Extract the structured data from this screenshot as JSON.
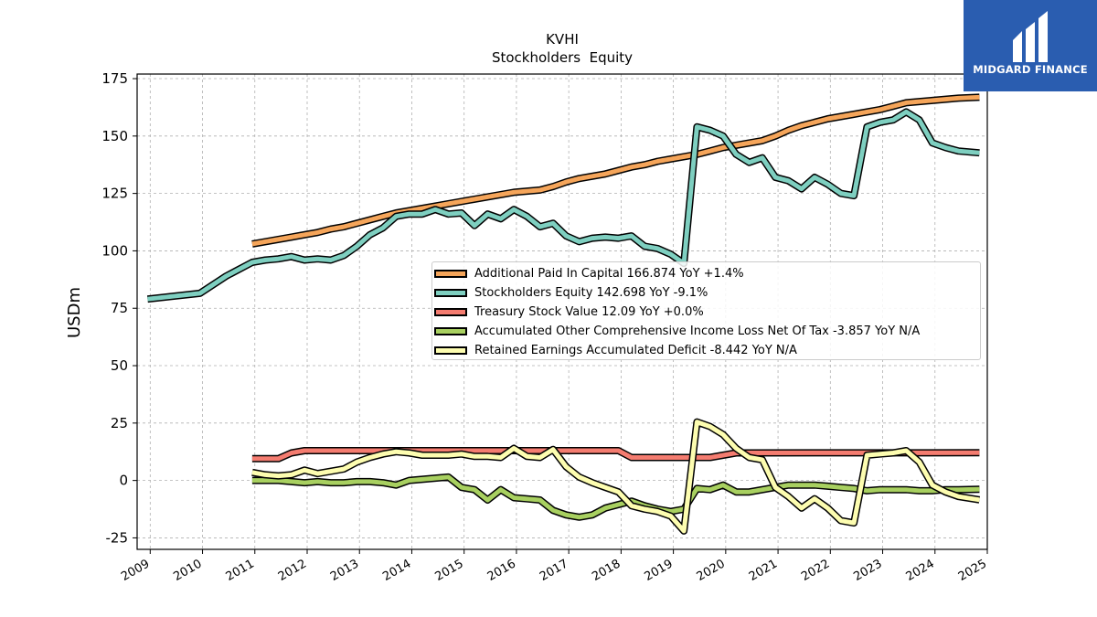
{
  "brand": {
    "name": "MIDGARD FINANCE",
    "color": "#2a5db0"
  },
  "chart_data": {
    "type": "line",
    "title": "KVHI",
    "subtitle": "Stockholders  Equity",
    "ylabel": "USDm",
    "xlabel": "",
    "ylim": [
      -30,
      177
    ],
    "xlim": [
      2008.75,
      2025.0
    ],
    "yticks": [
      -25,
      0,
      25,
      50,
      75,
      100,
      125,
      150,
      175
    ],
    "xticks": [
      "2009",
      "2010",
      "2011",
      "2012",
      "2013",
      "2014",
      "2015",
      "2016",
      "2017",
      "2018",
      "2019",
      "2020",
      "2021",
      "2022",
      "2023",
      "2024",
      "2025"
    ],
    "grid": true,
    "legend_position": "center-right",
    "series": [
      {
        "name": "Additional Paid In Capital",
        "legend_label": "Additional Paid In Capital  166.874 YoY +1.4%",
        "color": "#f5a55a",
        "points": [
          [
            2010.95,
            103
          ],
          [
            2011.2,
            104
          ],
          [
            2011.45,
            105
          ],
          [
            2011.7,
            106
          ],
          [
            2011.95,
            107
          ],
          [
            2012.2,
            108
          ],
          [
            2012.45,
            109.5
          ],
          [
            2012.7,
            110.5
          ],
          [
            2012.95,
            112
          ],
          [
            2013.2,
            113.5
          ],
          [
            2013.45,
            115
          ],
          [
            2013.7,
            116.5
          ],
          [
            2013.95,
            117.5
          ],
          [
            2014.2,
            118.5
          ],
          [
            2014.45,
            119.5
          ],
          [
            2014.7,
            120.5
          ],
          [
            2014.95,
            121.5
          ],
          [
            2015.2,
            122.5
          ],
          [
            2015.45,
            123.5
          ],
          [
            2015.7,
            124.5
          ],
          [
            2015.95,
            125.5
          ],
          [
            2016.2,
            126
          ],
          [
            2016.45,
            126.5
          ],
          [
            2016.7,
            128
          ],
          [
            2016.95,
            130
          ],
          [
            2017.2,
            131.5
          ],
          [
            2017.45,
            132.5
          ],
          [
            2017.7,
            133.5
          ],
          [
            2017.95,
            135
          ],
          [
            2018.2,
            136.5
          ],
          [
            2018.45,
            137.5
          ],
          [
            2018.7,
            139
          ],
          [
            2018.95,
            140
          ],
          [
            2019.2,
            141
          ],
          [
            2019.45,
            142
          ],
          [
            2019.7,
            143.5
          ],
          [
            2019.95,
            145
          ],
          [
            2020.2,
            146
          ],
          [
            2020.45,
            147
          ],
          [
            2020.7,
            148
          ],
          [
            2020.95,
            150
          ],
          [
            2021.2,
            152.5
          ],
          [
            2021.45,
            154.5
          ],
          [
            2021.7,
            156
          ],
          [
            2021.95,
            157.5
          ],
          [
            2022.2,
            158.5
          ],
          [
            2022.45,
            159.5
          ],
          [
            2022.7,
            160.5
          ],
          [
            2022.95,
            161.5
          ],
          [
            2023.2,
            163
          ],
          [
            2023.45,
            164.5
          ],
          [
            2023.7,
            165
          ],
          [
            2023.95,
            165.5
          ],
          [
            2024.2,
            166
          ],
          [
            2024.45,
            166.5
          ],
          [
            2024.85,
            166.874
          ]
        ]
      },
      {
        "name": "Stockholders Equity",
        "legend_label": "Stockholders Equity  142.698 YoY -9.1%",
        "color": "#7ecfc0",
        "points": [
          [
            2008.95,
            79
          ],
          [
            2009.95,
            81.5
          ],
          [
            2010.45,
            89
          ],
          [
            2010.95,
            95
          ],
          [
            2011.2,
            96
          ],
          [
            2011.45,
            96.5
          ],
          [
            2011.7,
            97.5
          ],
          [
            2011.95,
            96
          ],
          [
            2012.2,
            96.5
          ],
          [
            2012.45,
            96
          ],
          [
            2012.7,
            98
          ],
          [
            2012.95,
            102
          ],
          [
            2013.2,
            107
          ],
          [
            2013.45,
            110
          ],
          [
            2013.7,
            115
          ],
          [
            2013.95,
            116
          ],
          [
            2014.2,
            116
          ],
          [
            2014.45,
            118
          ],
          [
            2014.7,
            116
          ],
          [
            2014.95,
            116.5
          ],
          [
            2015.2,
            111
          ],
          [
            2015.45,
            116
          ],
          [
            2015.7,
            114
          ],
          [
            2015.95,
            118
          ],
          [
            2016.2,
            115
          ],
          [
            2016.45,
            110.5
          ],
          [
            2016.7,
            112
          ],
          [
            2016.95,
            106.5
          ],
          [
            2017.2,
            104
          ],
          [
            2017.45,
            105.5
          ],
          [
            2017.7,
            106
          ],
          [
            2017.95,
            105.5
          ],
          [
            2018.2,
            106.5
          ],
          [
            2018.45,
            102
          ],
          [
            2018.7,
            101
          ],
          [
            2018.95,
            98.5
          ],
          [
            2019.2,
            94.5
          ],
          [
            2019.45,
            154
          ],
          [
            2019.7,
            152.5
          ],
          [
            2019.95,
            150
          ],
          [
            2020.2,
            142
          ],
          [
            2020.45,
            138.5
          ],
          [
            2020.7,
            140.5
          ],
          [
            2020.95,
            132
          ],
          [
            2021.2,
            130.5
          ],
          [
            2021.45,
            127
          ],
          [
            2021.7,
            132
          ],
          [
            2021.95,
            129
          ],
          [
            2022.2,
            125
          ],
          [
            2022.45,
            124
          ],
          [
            2022.7,
            154
          ],
          [
            2022.95,
            156
          ],
          [
            2023.2,
            157
          ],
          [
            2023.45,
            160.5
          ],
          [
            2023.7,
            157
          ],
          [
            2023.95,
            147
          ],
          [
            2024.2,
            145
          ],
          [
            2024.45,
            143.5
          ],
          [
            2024.85,
            142.698
          ]
        ]
      },
      {
        "name": "Treasury Stock Value",
        "legend_label": "Treasury Stock Value  12.09 YoY +0.0%",
        "color": "#f47c70",
        "points": [
          [
            2010.95,
            9.5
          ],
          [
            2011.45,
            9.5
          ],
          [
            2011.7,
            12
          ],
          [
            2011.95,
            13
          ],
          [
            2017.95,
            13
          ],
          [
            2018.2,
            10
          ],
          [
            2019.7,
            10
          ],
          [
            2019.95,
            11
          ],
          [
            2020.2,
            12
          ],
          [
            2024.85,
            12.09
          ]
        ]
      },
      {
        "name": "Accumulated Other Comprehensive Income Loss Net Of Tax",
        "legend_label": "Accumulated Other Comprehensive Income Loss Net Of Tax  -3.857 YoY N/A",
        "color": "#a8d060",
        "points": [
          [
            2010.95,
            0
          ],
          [
            2011.45,
            0
          ],
          [
            2011.7,
            -0.5
          ],
          [
            2011.95,
            -1
          ],
          [
            2012.2,
            -0.5
          ],
          [
            2012.45,
            -1
          ],
          [
            2012.7,
            -1
          ],
          [
            2012.95,
            -0.5
          ],
          [
            2013.2,
            -0.5
          ],
          [
            2013.45,
            -1
          ],
          [
            2013.7,
            -2
          ],
          [
            2013.95,
            0
          ],
          [
            2014.2,
            0.5
          ],
          [
            2014.45,
            1
          ],
          [
            2014.7,
            1.5
          ],
          [
            2014.95,
            -3
          ],
          [
            2015.2,
            -4
          ],
          [
            2015.45,
            -8.5
          ],
          [
            2015.7,
            -4
          ],
          [
            2015.95,
            -7.5
          ],
          [
            2016.2,
            -8
          ],
          [
            2016.45,
            -8.5
          ],
          [
            2016.7,
            -13
          ],
          [
            2016.95,
            -15
          ],
          [
            2017.2,
            -16
          ],
          [
            2017.45,
            -15
          ],
          [
            2017.7,
            -12
          ],
          [
            2017.95,
            -10.5
          ],
          [
            2018.2,
            -9
          ],
          [
            2018.45,
            -11
          ],
          [
            2018.7,
            -12.5
          ],
          [
            2018.95,
            -13.5
          ],
          [
            2019.2,
            -12.5
          ],
          [
            2019.45,
            -3.5
          ],
          [
            2019.7,
            -4
          ],
          [
            2019.95,
            -2
          ],
          [
            2020.2,
            -5
          ],
          [
            2020.45,
            -5
          ],
          [
            2020.7,
            -4
          ],
          [
            2020.95,
            -3
          ],
          [
            2021.2,
            -2
          ],
          [
            2021.45,
            -2
          ],
          [
            2021.7,
            -2
          ],
          [
            2021.95,
            -2.5
          ],
          [
            2022.2,
            -3
          ],
          [
            2022.45,
            -3.5
          ],
          [
            2022.7,
            -4.5
          ],
          [
            2022.95,
            -4
          ],
          [
            2023.2,
            -4
          ],
          [
            2023.45,
            -4
          ],
          [
            2023.7,
            -4.5
          ],
          [
            2023.95,
            -4.5
          ],
          [
            2024.2,
            -4
          ],
          [
            2024.45,
            -4
          ],
          [
            2024.85,
            -3.857
          ]
        ]
      },
      {
        "name": "Retained Earnings Accumulated Deficit",
        "legend_label": "Retained Earnings Accumulated Deficit  -8.442 YoY N/A",
        "color": "#fdfdb0",
        "points": [
          [
            2010.95,
            3.5
          ],
          [
            2011.2,
            2.5
          ],
          [
            2011.45,
            2
          ],
          [
            2011.7,
            2.5
          ],
          [
            2011.95,
            4.5
          ],
          [
            2012.2,
            3
          ],
          [
            2012.45,
            4
          ],
          [
            2012.7,
            5
          ],
          [
            2012.95,
            8
          ],
          [
            2013.2,
            10
          ],
          [
            2013.45,
            11.5
          ],
          [
            2013.7,
            12.5
          ],
          [
            2013.95,
            12
          ],
          [
            2014.2,
            11
          ],
          [
            2014.45,
            11
          ],
          [
            2014.7,
            11
          ],
          [
            2014.95,
            11.5
          ],
          [
            2015.2,
            10.5
          ],
          [
            2015.45,
            10.5
          ],
          [
            2015.7,
            10
          ],
          [
            2015.95,
            14
          ],
          [
            2016.2,
            10.5
          ],
          [
            2016.45,
            10
          ],
          [
            2016.7,
            13.5
          ],
          [
            2016.95,
            6
          ],
          [
            2017.2,
            1.5
          ],
          [
            2017.45,
            -1
          ],
          [
            2017.7,
            -3
          ],
          [
            2017.95,
            -5
          ],
          [
            2018.2,
            -11
          ],
          [
            2018.45,
            -12.5
          ],
          [
            2018.7,
            -13.5
          ],
          [
            2018.95,
            -15.5
          ],
          [
            2019.2,
            -22
          ],
          [
            2019.45,
            25.5
          ],
          [
            2019.7,
            23.5
          ],
          [
            2019.95,
            20
          ],
          [
            2020.2,
            14
          ],
          [
            2020.45,
            10
          ],
          [
            2020.7,
            9
          ],
          [
            2020.95,
            -3
          ],
          [
            2021.2,
            -7
          ],
          [
            2021.45,
            -12
          ],
          [
            2021.7,
            -8
          ],
          [
            2021.95,
            -12
          ],
          [
            2022.2,
            -17.5
          ],
          [
            2022.45,
            -18.5
          ],
          [
            2022.7,
            11
          ],
          [
            2022.95,
            11.5
          ],
          [
            2023.2,
            12
          ],
          [
            2023.45,
            13
          ],
          [
            2023.7,
            8
          ],
          [
            2023.95,
            -2
          ],
          [
            2024.2,
            -5
          ],
          [
            2024.45,
            -7
          ],
          [
            2024.85,
            -8.442
          ]
        ]
      }
    ]
  }
}
